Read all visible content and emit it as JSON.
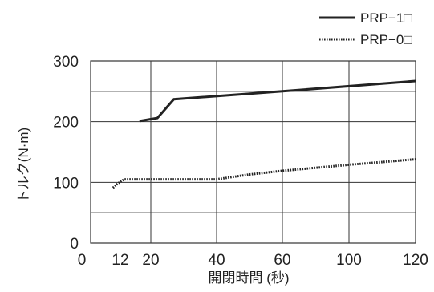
{
  "chart_data": {
    "type": "line",
    "xlabel": "開閉時間 (秒)",
    "ylabel": "トルク(N·m)",
    "x_ticks": [
      "0",
      "12",
      "20",
      "40",
      "60",
      "100",
      "120"
    ],
    "y_ticks": [
      0,
      100,
      200,
      300
    ],
    "ylim": [
      0,
      300
    ],
    "grid": true,
    "legend_position": "top-right",
    "series": [
      {
        "name": "PRP−1□",
        "style": "solid",
        "color": "#222222",
        "points": [
          [
            17,
            201
          ],
          [
            22,
            206
          ],
          [
            27,
            237
          ],
          [
            60,
            250
          ],
          [
            120,
            267
          ]
        ]
      },
      {
        "name": "PRP−0□",
        "style": "dotted",
        "color": "#222222",
        "points": [
          [
            9,
            91
          ],
          [
            11,
            98
          ],
          [
            13,
            105
          ],
          [
            40,
            105
          ],
          [
            50,
            113
          ],
          [
            60,
            119
          ],
          [
            100,
            129
          ],
          [
            120,
            138
          ]
        ]
      }
    ]
  }
}
